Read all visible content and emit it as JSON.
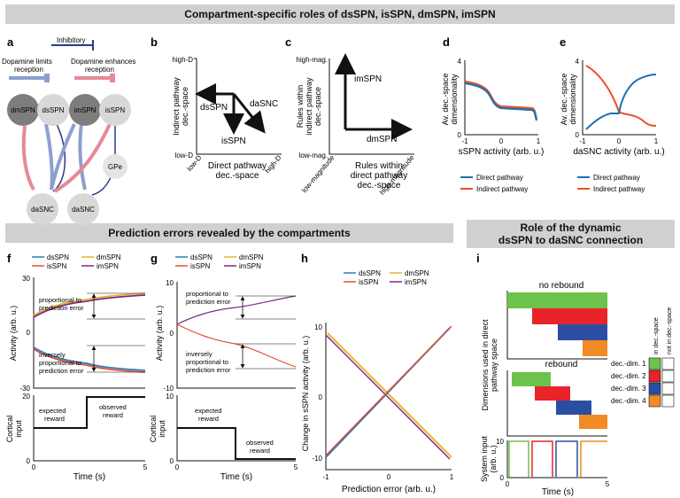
{
  "banners": {
    "top": "Compartment-specific roles of dsSPN, isSPN, dmSPN, imSPN",
    "bottom_left": "Prediction errors revealed by the compartments",
    "bottom_right_1": "Role of the dynamic",
    "bottom_right_2": "dsSPN to daSNC connection"
  },
  "panel_labels": [
    "a",
    "b",
    "c",
    "d",
    "e",
    "f",
    "g",
    "h",
    "i"
  ],
  "panel_a": {
    "legend_inhibitory": "Inhibitory",
    "legend_da_limits_1": "Dopamine limits",
    "legend_da_limits_2": "reception",
    "legend_da_enhances_1": "Dopamine enhances",
    "legend_da_enhances_2": "reception",
    "nodes": [
      "dmSPN",
      "dsSPN",
      "imSPN",
      "isSPN",
      "GPe",
      "daSNC",
      "daSNC"
    ]
  },
  "panel_b": {
    "ylabel_1": "Indirect pathway",
    "ylabel_2": "dec.-space",
    "xlabel_1": "Direct pathway",
    "xlabel_2": "dec.-space",
    "ytick_high": "high-D",
    "ytick_low": "low-D",
    "xtick_low": "low-D",
    "xtick_high": "high-D",
    "arrow_labels": [
      "dsSPN",
      "isSPN",
      "daSNC"
    ]
  },
  "panel_c": {
    "ylabel_1": "Rules within",
    "ylabel_2": "indirect pathway",
    "ylabel_3": "dec.-space",
    "xlabel_1": "Rules within",
    "xlabel_2": "direct pathway",
    "xlabel_3": "dec.-space",
    "ytick_high": "high-mag.",
    "ytick_low": "low-mag.",
    "xtick_low": "low-magnitude",
    "xtick_high": "high-magnitude",
    "arrow_labels": [
      "imSPN",
      "dmSPN"
    ]
  },
  "panel_d": {
    "ylabel_1": "Av. dec.-space",
    "ylabel_2": "dimensionality",
    "xlabel": "sSPN activity (arb. u.)",
    "yticks": [
      "4",
      "0"
    ],
    "xticks": [
      "-1",
      "0",
      "1"
    ],
    "legend": [
      "Direct pathway",
      "Indirect pathway"
    ]
  },
  "panel_e": {
    "ylabel_1": "Av. dec.-space",
    "ylabel_2": "dimensionality",
    "xlabel": "daSNC activity (arb. u.)",
    "yticks": [
      "4",
      "0"
    ],
    "xticks": [
      "-1",
      "0",
      "1"
    ],
    "legend": [
      "Direct pathway",
      "Indirect pathway"
    ]
  },
  "panel_f": {
    "legend": [
      "dsSPN",
      "isSPN",
      "dmSPN",
      "imSPN"
    ],
    "ylabel": "Activity (arb. u.)",
    "yticks": [
      "30",
      "0",
      "-30"
    ],
    "annot_prop_1": "proportional to",
    "annot_prop_2": "prediction error",
    "annot_inv_1": "inversely",
    "annot_inv_2": "proportional to",
    "annot_inv_3": "prediction error",
    "cortical_ylabel_1": "Cortical",
    "cortical_ylabel_2": "input",
    "cortical_yticks": [
      "20",
      "0"
    ],
    "expected_1": "expected",
    "expected_2": "reward",
    "observed_1": "observed",
    "observed_2": "reward",
    "xlabel": "Time (s)",
    "xticks": [
      "0",
      "5"
    ]
  },
  "panel_g": {
    "legend": [
      "dsSPN",
      "isSPN",
      "dmSPN",
      "imSPN"
    ],
    "ylabel": "Activity (arb. u.)",
    "yticks": [
      "10",
      "0",
      "-10"
    ],
    "annot_prop_1": "proportional to",
    "annot_prop_2": "prediction error",
    "annot_inv_1": "inversely",
    "annot_inv_2": "proportional to",
    "annot_inv_3": "prediction error",
    "cortical_ylabel_1": "Cortical",
    "cortical_ylabel_2": "input",
    "cortical_yticks": [
      "10",
      "0"
    ],
    "expected_1": "expected",
    "expected_2": "reward",
    "observed_1": "observed",
    "observed_2": "reward",
    "xlabel": "Time (s)",
    "xticks": [
      "0",
      "5"
    ]
  },
  "panel_h": {
    "legend": [
      "dsSPN",
      "isSPN",
      "dmSPN",
      "imSPN"
    ],
    "ylabel": "Change in sSPN activity (arb. u.)",
    "yticks": [
      "10",
      "0",
      "-10"
    ],
    "xlabel": "Prediction error (arb. u.)",
    "xticks": [
      "-1",
      "0",
      "1"
    ]
  },
  "panel_i": {
    "no_rebound": "no rebound",
    "rebound": "rebound",
    "ylabel_1": "Dimensions used in direct",
    "ylabel_2": "pathway space",
    "dims": [
      "dec.-dim. 1",
      "dec.-dim. 2",
      "dec.-dim. 3",
      "dec.-dim. 4"
    ],
    "col_in": "in dec.-space",
    "col_not": "not in dec.-space",
    "sys_ylabel_1": "System input",
    "sys_ylabel_2": "(arb. u.)",
    "sys_yticks": [
      "10",
      "0"
    ],
    "xlabel": "Time (s)",
    "xticks": [
      "0",
      "5"
    ]
  },
  "colors": {
    "ds": "#2e7bbf",
    "is": "#e0532f",
    "dm": "#e8b32a",
    "im": "#7a2b8c",
    "direct": "#1f6fb5",
    "indirect": "#e8532a",
    "green": "#6cc24a",
    "red": "#e8232a",
    "blue": "#2b4ea2",
    "orange": "#f28a25",
    "inhib": "#2a3a8c",
    "limits": "#8b9fd0",
    "enhances": "#e48a96",
    "banner": "#d0d0d0"
  }
}
